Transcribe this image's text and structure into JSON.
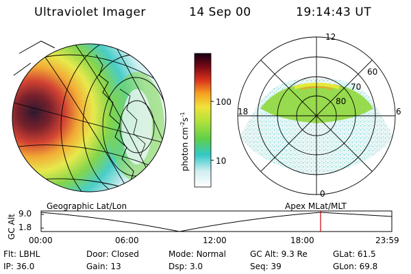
{
  "header": {
    "instrument": "Ultraviolet Imager",
    "date": "14 Sep 00",
    "time": "19:14:43 UT"
  },
  "colorbar": {
    "label_text": "photon cm",
    "label_exp1": "-2",
    "label_mid": "s",
    "label_exp2": "-1",
    "ticks": [
      "100",
      "10"
    ]
  },
  "polar_plot": {
    "mlt_labels": [
      "12",
      "18",
      "6",
      "0"
    ],
    "lat_labels": [
      "60",
      "70",
      "80"
    ]
  },
  "orbit_strip": {
    "left_title": "Geographic Lat/Lon",
    "right_title": "Apex  MLat/MLT",
    "y_axis_label": "GC Alt",
    "y_ticks": [
      "9.0",
      "1.8"
    ],
    "x_ticks": [
      "00:00",
      "06:00",
      "12:00",
      "18:00",
      "23:59"
    ],
    "current_time_marker_color": "#cc0000"
  },
  "footer": {
    "row1": [
      {
        "label": "Flt:",
        "value": "LBHL"
      },
      {
        "label": "Door:",
        "value": "Closed"
      },
      {
        "label": "Mode:",
        "value": "Normal"
      },
      {
        "label": "GC Alt:",
        "value": "9.3 Re"
      },
      {
        "label": "GLat:",
        "value": "61.5"
      }
    ],
    "row2": [
      {
        "label": "IP:",
        "value": "36.0"
      },
      {
        "label": "Gain:",
        "value": "13"
      },
      {
        "label": "Dsp:",
        "value": "3.0"
      },
      {
        "label": "Seq:",
        "value": "39"
      },
      {
        "label": "GLon:",
        "value": "69.8"
      }
    ]
  }
}
